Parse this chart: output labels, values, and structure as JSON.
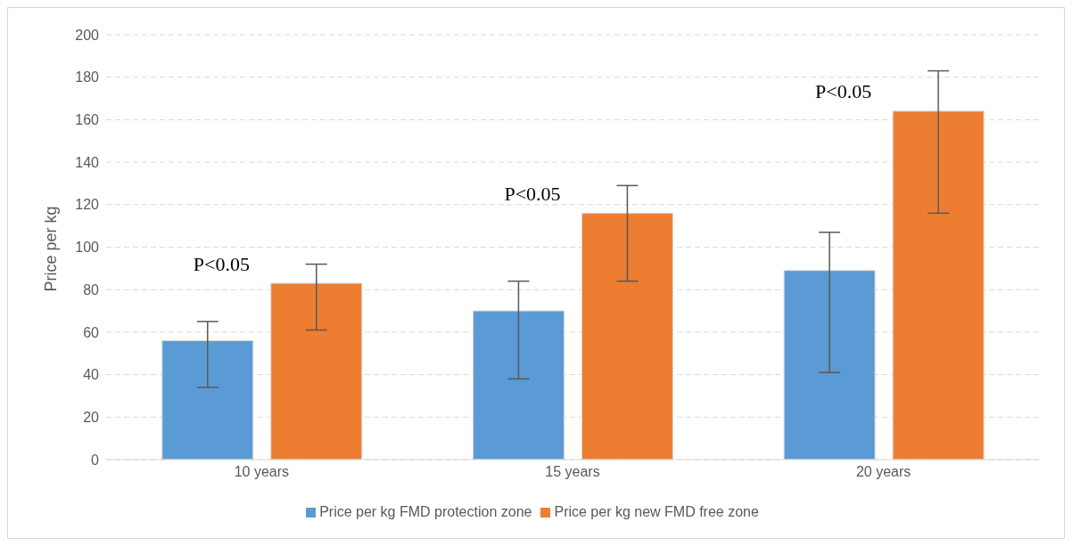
{
  "chart_data": {
    "type": "bar",
    "ylabel": "Price per kg",
    "categories": [
      "10 years",
      "15 years",
      "20 years"
    ],
    "series": [
      {
        "name": "Price per kg FMD protection zone",
        "color": "#5b9bd5",
        "values": [
          56,
          70,
          89
        ],
        "errors": [
          [
            34,
            65
          ],
          [
            38,
            84
          ],
          [
            41,
            107
          ]
        ]
      },
      {
        "name": "Price per kg new FMD free zone",
        "color": "#ed7d31",
        "values": [
          83,
          116,
          164
        ],
        "errors": [
          [
            61,
            92
          ],
          [
            84,
            129
          ],
          [
            116,
            183
          ]
        ]
      }
    ],
    "ylim": [
      0,
      200
    ],
    "yticks": [
      0,
      20,
      40,
      60,
      80,
      100,
      120,
      140,
      160,
      180,
      200
    ],
    "grid": "y",
    "legend": "bottom",
    "annotations": [
      "P<0.05",
      "P<0.05",
      "P<0.05"
    ]
  }
}
